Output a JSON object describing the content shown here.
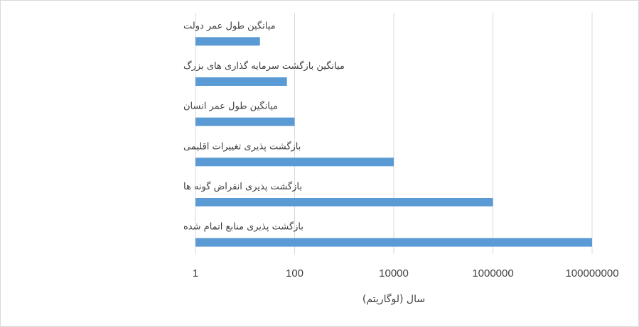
{
  "chart_data": {
    "type": "bar",
    "orientation": "horizontal",
    "x_scale": "log",
    "categories": [
      "میانگین طول عمر دولت",
      "میانگین بازگشت سرمایه گذاری های بزرگ",
      "میانگین طول عمر انسان",
      "بازگشت پذیری تغییرات اقلیمی",
      "بازگشت پذیری انقراض گونه ها",
      "بازگشت پذیری منابع اتمام شده"
    ],
    "values": [
      20,
      70,
      100,
      10000,
      1000000,
      100000000
    ],
    "xlabel": "سال (لوگاریتم)",
    "x_ticks": [
      "1",
      "100",
      "10000",
      "1000000",
      "100000000"
    ],
    "x_tick_values": [
      1,
      100,
      10000,
      1000000,
      100000000
    ],
    "xlim": [
      1,
      100000000
    ],
    "grid": "vertical",
    "bar_color": "#5b9bd5",
    "grid_color": "#d9d9d9"
  }
}
